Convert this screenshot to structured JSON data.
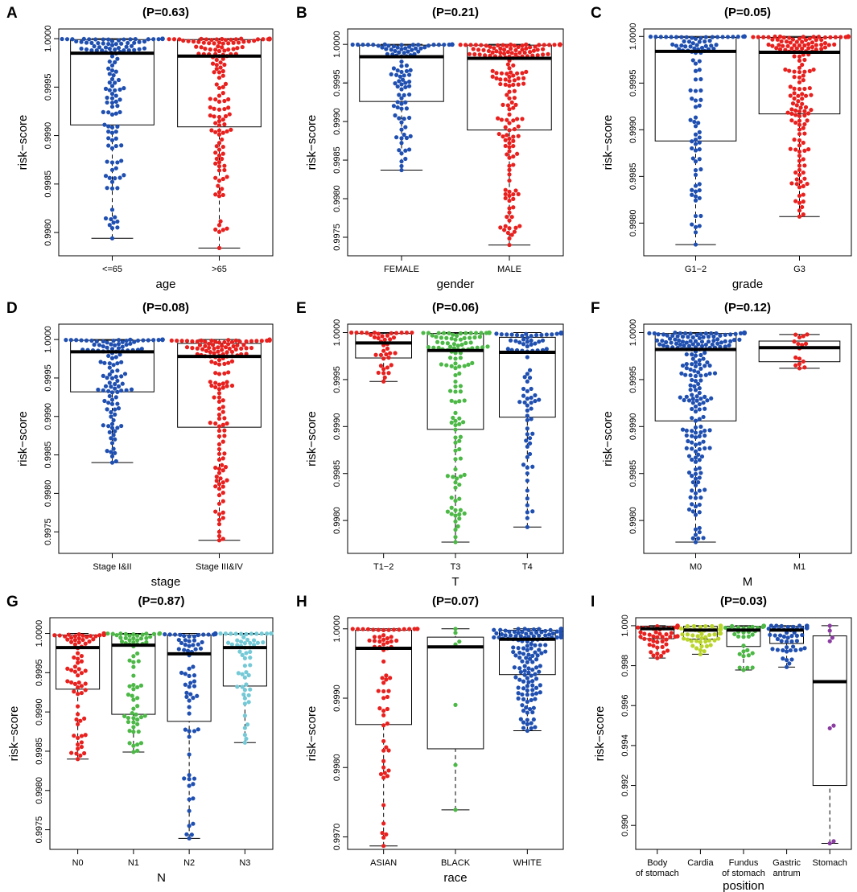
{
  "figure": {
    "colors": {
      "blue": "#1f4fb0",
      "red": "#e8201e",
      "green": "#4cb846",
      "cyan": "#74c9d6",
      "lime": "#b9d52c",
      "purple": "#8a3ca0",
      "axis": "#000000"
    }
  },
  "chart_data": [
    {
      "type": "box",
      "letter": "A",
      "title": "(P=0.63)",
      "xlabel": "age",
      "ylabel": "risk−score",
      "ylim": [
        0.99776,
        1.0001
      ],
      "yticks": [
        0.998,
        0.9985,
        0.999,
        0.9995,
        1.0
      ],
      "ytick_labels": [
        "0.9980",
        "0.9985",
        "0.9990",
        "0.9995",
        "1.0000"
      ],
      "categories": [
        "<=65",
        ">65"
      ],
      "colors": [
        "blue",
        "red"
      ],
      "boxes": [
        {
          "lower": 0.99794,
          "q1": 0.99911,
          "median": 0.99985,
          "q3": 0.99999,
          "upper": 1.0,
          "n": 150
        },
        {
          "lower": 0.99784,
          "q1": 0.99909,
          "median": 0.99982,
          "q3": 0.99999,
          "upper": 1.0,
          "n": 160
        }
      ]
    },
    {
      "type": "box",
      "letter": "B",
      "title": "(P=0.21)",
      "xlabel": "gender",
      "ylabel": "risk−score",
      "ylim": [
        0.99726,
        1.0002
      ],
      "yticks": [
        0.9975,
        0.998,
        0.9985,
        0.999,
        0.9995,
        1.0
      ],
      "ytick_labels": [
        "0.9975",
        "0.9980",
        "0.9985",
        "0.9990",
        "0.9995",
        "1.0000"
      ],
      "categories": [
        "FEMALE",
        "MALE"
      ],
      "colors": [
        "blue",
        "red"
      ],
      "boxes": [
        {
          "lower": 0.99837,
          "q1": 0.99926,
          "median": 0.99984,
          "q3": 0.99999,
          "upper": 1.0,
          "n": 110
        },
        {
          "lower": 0.9974,
          "q1": 0.99889,
          "median": 0.99982,
          "q3": 0.99999,
          "upper": 1.0,
          "n": 200
        }
      ]
    },
    {
      "type": "box",
      "letter": "C",
      "title": "(P=0.05)",
      "xlabel": "grade",
      "ylabel": "risk−score",
      "ylim": [
        0.99765,
        1.00008
      ],
      "yticks": [
        0.998,
        0.9985,
        0.999,
        0.9995,
        1.0
      ],
      "ytick_labels": [
        "0.9980",
        "0.9985",
        "0.9990",
        "0.9995",
        "1.0000"
      ],
      "categories": [
        "G1−2",
        "G3"
      ],
      "colors": [
        "blue",
        "red"
      ],
      "boxes": [
        {
          "lower": 0.99777,
          "q1": 0.99888,
          "median": 0.99984,
          "q3": 0.99999,
          "upper": 1.0,
          "n": 110
        },
        {
          "lower": 0.99807,
          "q1": 0.99917,
          "median": 0.99983,
          "q3": 0.99999,
          "upper": 1.0,
          "n": 190
        }
      ]
    },
    {
      "type": "box",
      "letter": "D",
      "title": "(P=0.08)",
      "xlabel": "stage",
      "ylabel": "risk−score",
      "ylim": [
        0.99722,
        1.0002
      ],
      "yticks": [
        0.9975,
        0.998,
        0.9985,
        0.999,
        0.9995,
        1.0
      ],
      "ytick_labels": [
        "0.9975",
        "0.9980",
        "0.9985",
        "0.9990",
        "0.9995",
        "1.0000"
      ],
      "categories": [
        "Stage I&II",
        "Stage III&IV"
      ],
      "colors": [
        "blue",
        "red"
      ],
      "boxes": [
        {
          "lower": 0.9984,
          "q1": 0.99932,
          "median": 0.99984,
          "q3": 0.99999,
          "upper": 1.0,
          "n": 140
        },
        {
          "lower": 0.99739,
          "q1": 0.99886,
          "median": 0.99978,
          "q3": 0.99995,
          "upper": 1.0,
          "n": 160
        }
      ]
    },
    {
      "type": "box",
      "letter": "E",
      "title": "(P=0.06)",
      "xlabel": "T",
      "ylabel": "risk−score",
      "ylim": [
        0.99765,
        1.00009
      ],
      "yticks": [
        0.998,
        0.9985,
        0.999,
        0.9995,
        1.0
      ],
      "ytick_labels": [
        "0.9980",
        "0.9985",
        "0.9990",
        "0.9995",
        "1.0000"
      ],
      "categories": [
        "T1−2",
        "T3",
        "T4"
      ],
      "colors": [
        "red",
        "green",
        "blue"
      ],
      "boxes": [
        {
          "lower": 0.99948,
          "q1": 0.99973,
          "median": 0.99989,
          "q3": 0.99999,
          "upper": 1.0,
          "n": 40
        },
        {
          "lower": 0.99777,
          "q1": 0.99897,
          "median": 0.99981,
          "q3": 0.99999,
          "upper": 1.0,
          "n": 140
        },
        {
          "lower": 0.99793,
          "q1": 0.9991,
          "median": 0.99979,
          "q3": 0.99995,
          "upper": 1.0,
          "n": 90
        }
      ]
    },
    {
      "type": "box",
      "letter": "F",
      "title": "(P=0.12)",
      "xlabel": "M",
      "ylabel": "risk−score",
      "ylim": [
        0.99765,
        1.00009
      ],
      "yticks": [
        0.998,
        0.9985,
        0.999,
        0.9995,
        1.0
      ],
      "ytick_labels": [
        "0.9980",
        "0.9985",
        "0.9990",
        "0.9995",
        "1.0000"
      ],
      "categories": [
        "M0",
        "M1"
      ],
      "colors": [
        "blue",
        "red"
      ],
      "boxes": [
        {
          "lower": 0.99777,
          "q1": 0.99906,
          "median": 0.99982,
          "q3": 0.99999,
          "upper": 1.0,
          "n": 260
        },
        {
          "lower": 0.99962,
          "q1": 0.99969,
          "median": 0.99984,
          "q3": 0.99991,
          "upper": 0.99998,
          "n": 16
        }
      ]
    },
    {
      "type": "box",
      "letter": "G",
      "title": "(P=0.87)",
      "xlabel": "N",
      "ylabel": "risk−score",
      "ylim": [
        0.99725,
        1.0002
      ],
      "yticks": [
        0.9975,
        0.998,
        0.9985,
        0.999,
        0.9995,
        1.0
      ],
      "ytick_labels": [
        "0.9975",
        "0.9980",
        "0.9985",
        "0.9990",
        "0.9995",
        "1.0000"
      ],
      "categories": [
        "N0",
        "N1",
        "N2",
        "N3"
      ],
      "colors": [
        "red",
        "green",
        "blue",
        "cyan"
      ],
      "boxes": [
        {
          "lower": 0.9984,
          "q1": 0.99929,
          "median": 0.99982,
          "q3": 0.99998,
          "upper": 1.0,
          "n": 90
        },
        {
          "lower": 0.99849,
          "q1": 0.99897,
          "median": 0.99985,
          "q3": 0.99999,
          "upper": 1.0,
          "n": 80
        },
        {
          "lower": 0.99739,
          "q1": 0.99888,
          "median": 0.99974,
          "q3": 0.99998,
          "upper": 1.0,
          "n": 80
        },
        {
          "lower": 0.99861,
          "q1": 0.99933,
          "median": 0.99982,
          "q3": 0.99999,
          "upper": 1.0,
          "n": 60
        }
      ]
    },
    {
      "type": "box",
      "letter": "H",
      "title": "(P=0.07)",
      "xlabel": "race",
      "ylabel": "risk−score",
      "ylim": [
        0.99682,
        1.00016
      ],
      "yticks": [
        0.997,
        0.998,
        0.999,
        1.0
      ],
      "ytick_labels": [
        "0.9970",
        "0.9980",
        "0.9990",
        "1.0000"
      ],
      "categories": [
        "ASIAN",
        "BLACK",
        "WHITE"
      ],
      "colors": [
        "red",
        "green",
        "blue"
      ],
      "boxes": [
        {
          "lower": 0.99687,
          "q1": 0.99862,
          "median": 0.99972,
          "q3": 0.99998,
          "upper": 1.0,
          "n": 70
        },
        {
          "lower": 0.99739,
          "q1": 0.99827,
          "median": 0.99974,
          "q3": 0.99988,
          "upper": 1.0,
          "n": 7
        },
        {
          "lower": 0.99853,
          "q1": 0.99934,
          "median": 0.99985,
          "q3": 0.99998,
          "upper": 1.0,
          "n": 180
        }
      ]
    },
    {
      "type": "box",
      "letter": "I",
      "title": "(P=0.03)",
      "xlabel": "position",
      "ylabel": "risk−score",
      "ylim": [
        0.9888,
        1.0004
      ],
      "yticks": [
        0.99,
        0.992,
        0.994,
        0.996,
        0.998,
        1.0
      ],
      "ytick_labels": [
        "0.990",
        "0.992",
        "0.994",
        "0.996",
        "0.998",
        "1.000"
      ],
      "categories": [
        "Body\nof stomach",
        "Cardia",
        "Fundus\nof stomach",
        "Gastric\nantrum",
        "Stomach"
      ],
      "colors": [
        "red",
        "lime",
        "green",
        "blue",
        "purple"
      ],
      "boxes": [
        {
          "lower": 0.99838,
          "q1": 0.99935,
          "median": 0.99985,
          "q3": 0.99998,
          "upper": 1.0,
          "n": 70
        },
        {
          "lower": 0.99857,
          "q1": 0.99933,
          "median": 0.99978,
          "q3": 0.99997,
          "upper": 1.0,
          "n": 60
        },
        {
          "lower": 0.99778,
          "q1": 0.99896,
          "median": 0.99978,
          "q3": 0.99997,
          "upper": 1.0,
          "n": 40
        },
        {
          "lower": 0.99793,
          "q1": 0.99911,
          "median": 0.99978,
          "q3": 0.99997,
          "upper": 1.0,
          "n": 60
        },
        {
          "lower": 0.9891,
          "q1": 0.992,
          "median": 0.9972,
          "q3": 0.99949,
          "upper": 1.0,
          "n": 8
        }
      ]
    }
  ]
}
